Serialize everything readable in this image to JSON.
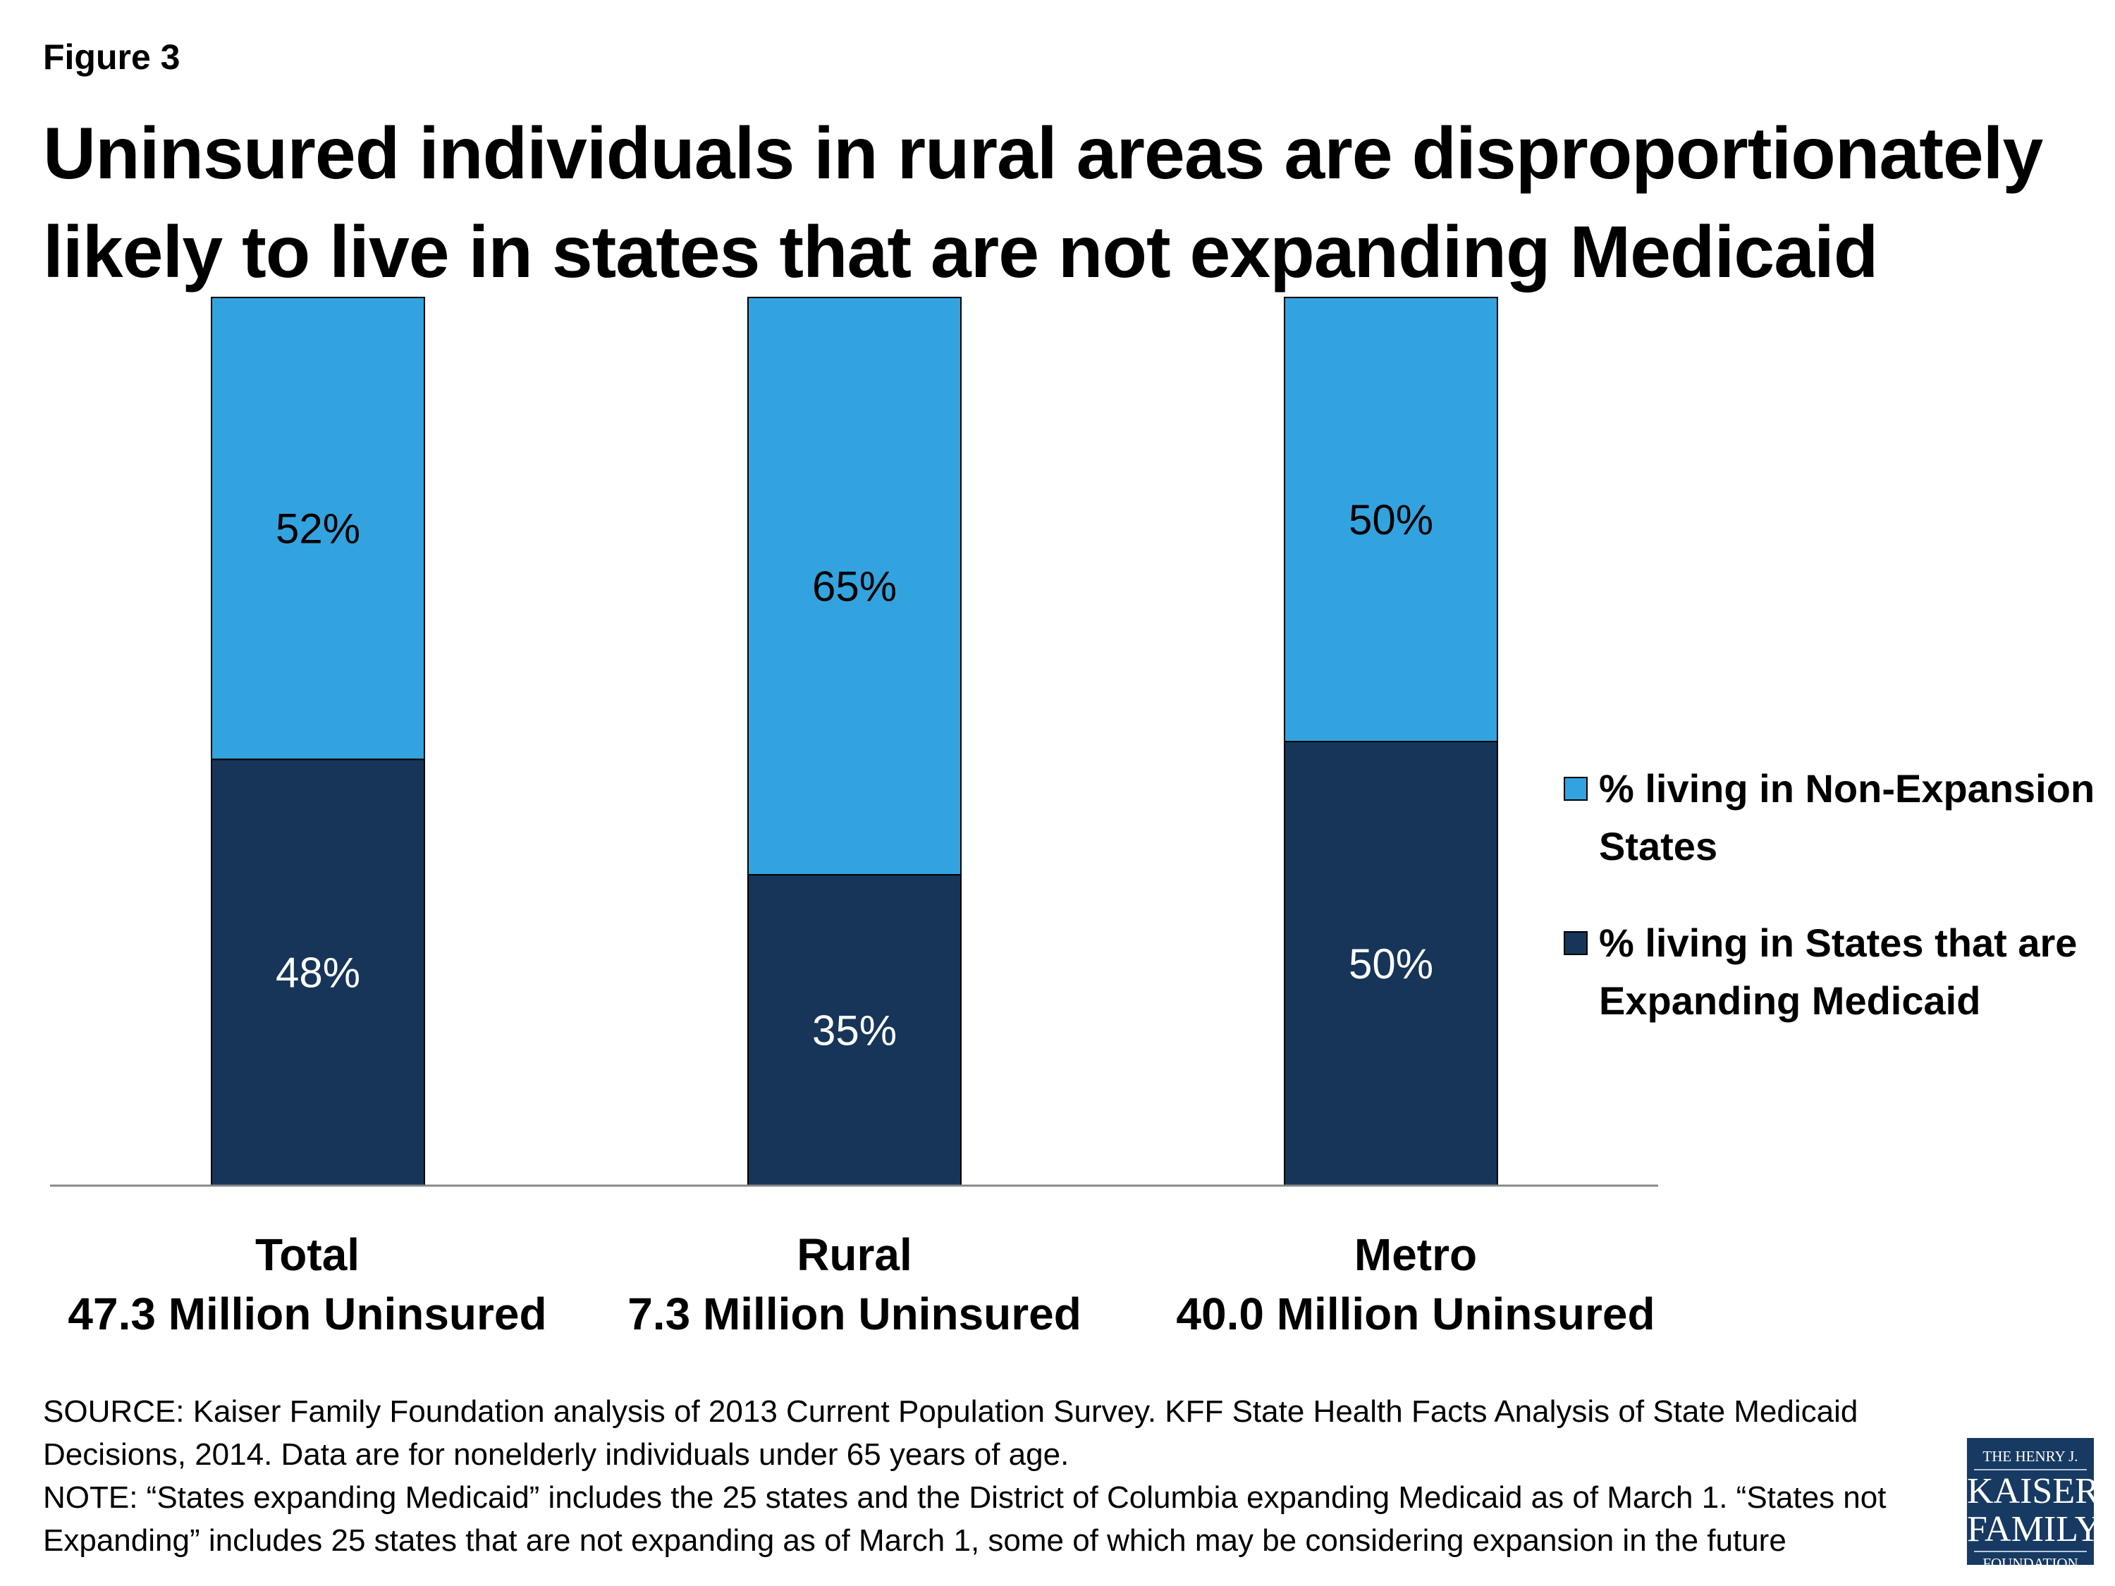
{
  "figure_label": "Figure 3",
  "title": "Uninsured individuals in rural areas are disproportionately likely to live in states that are not expanding Medicaid",
  "chart_data": {
    "type": "bar",
    "stacked": true,
    "percent_stacked": true,
    "categories": [
      "Total",
      "Rural",
      "Metro"
    ],
    "category_sublabels": [
      "47.3 Million Uninsured",
      "7.3 Million Uninsured",
      "40.0 Million Uninsured"
    ],
    "series": [
      {
        "name": "% living in States that are Expanding Medicaid",
        "values": [
          48,
          35,
          50
        ],
        "labels": [
          "48%",
          "35%",
          "50%"
        ],
        "color": "#163558"
      },
      {
        "name": "% living in Non-Expansion States",
        "values": [
          52,
          65,
          50
        ],
        "labels": [
          "52%",
          "65%",
          "50%"
        ],
        "color": "#33a3df"
      }
    ],
    "ylim": [
      0,
      100
    ],
    "grid": false,
    "y_axis_shown": false,
    "legend_position": "right",
    "legend_order": [
      "% living in Non-Expansion States",
      "% living in States that are Expanding Medicaid"
    ]
  },
  "legend": {
    "items": [
      {
        "label": "% living in Non-Expansion States",
        "color": "#33a3df"
      },
      {
        "label": "% living in States that are Expanding Medicaid",
        "color": "#163558"
      }
    ]
  },
  "footer": {
    "source": "SOURCE: Kaiser Family Foundation analysis of 2013 Current Population Survey. KFF State Health Facts Analysis of State Medicaid Decisions, 2014. Data are for nonelderly individuals under 65 years of age.",
    "note": "NOTE: “States expanding Medicaid” includes the 25 states and the District of Columbia expanding Medicaid as of March 1. “States not Expanding” includes 25 states that are not expanding as of March 1, some of which may be considering expansion in the future"
  },
  "logo": {
    "line1": "THE HENRY J.",
    "line2": "KAISER",
    "line3": "FAMILY",
    "line4": "FOUNDATION",
    "color": "#173a63"
  }
}
